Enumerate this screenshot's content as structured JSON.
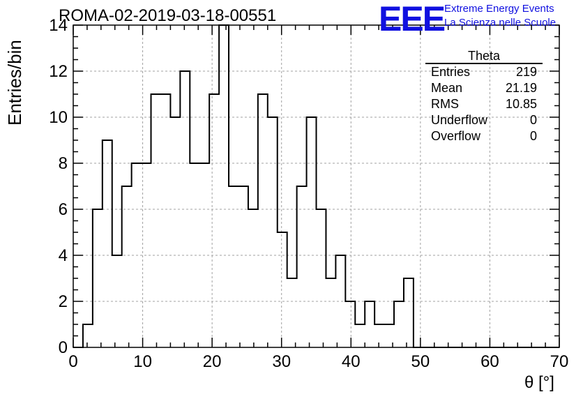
{
  "header": {
    "title": "ROMA-02-2019-03-18-00551",
    "logo": "EEE",
    "logo_line1": "Extreme Energy Events",
    "logo_line2": "La Scienza nelle Scuole"
  },
  "stats": {
    "name": "Theta",
    "rows": [
      {
        "label": "Entries",
        "value": "219"
      },
      {
        "label": "Mean",
        "value": "21.19"
      },
      {
        "label": "RMS",
        "value": "10.85"
      },
      {
        "label": "Underflow",
        "value": "0"
      },
      {
        "label": "Overflow",
        "value": "0"
      }
    ]
  },
  "colors": {
    "line": "#000000",
    "grid": "#a0a0a0",
    "logo": "#1010e0"
  },
  "chart_data": {
    "type": "histogram",
    "title": "ROMA-02-2019-03-18-00551",
    "xlabel": "θ [°]",
    "ylabel": "Entries/bin",
    "xlim": [
      0,
      70
    ],
    "ylim": [
      0,
      14
    ],
    "grid": true,
    "legend": "top-right",
    "x_ticks": [
      0,
      10,
      20,
      30,
      40,
      50,
      60,
      70
    ],
    "y_ticks": [
      0,
      2,
      4,
      6,
      8,
      10,
      12,
      14
    ],
    "bin_width": 1.4,
    "bin_start": 0,
    "bin_values": [
      0,
      1,
      6,
      9,
      4,
      7,
      8,
      8,
      11,
      11,
      10,
      12,
      8,
      8,
      11,
      14,
      7,
      7,
      6,
      11,
      10,
      5,
      3,
      7,
      10,
      6,
      3,
      4,
      2,
      1,
      2,
      1,
      1,
      2,
      3,
      0,
      0,
      0,
      0,
      0,
      0,
      0,
      0,
      0,
      0,
      0,
      0,
      0,
      0,
      0
    ]
  }
}
